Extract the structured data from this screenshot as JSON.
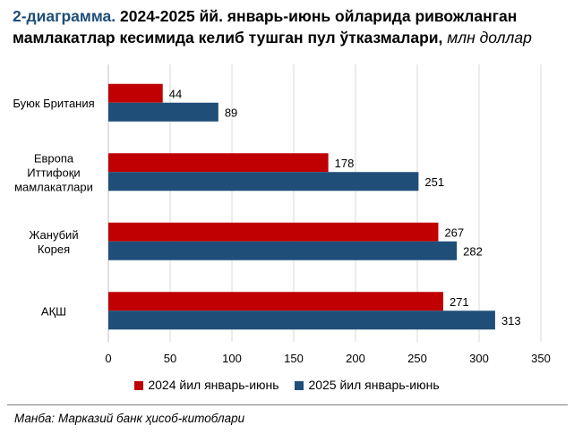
{
  "title": {
    "lead": "2-диаграмма.",
    "main": " 2024-2025 йй. январь-июнь ойларида ривожланган мамлакатлар кесимида келиб тушган пул ўтказмалари, ",
    "unit": "млн доллар"
  },
  "source": "Манба: Марказий банк ҳисоб-китоблари",
  "chart_data": {
    "type": "bar",
    "orientation": "horizontal",
    "categories": [
      [
        "Буюк Британия"
      ],
      [
        "Европа",
        "Иттифоқи",
        "мамлакатлари"
      ],
      [
        "Жанубий",
        "Корея"
      ],
      [
        "АҚШ"
      ]
    ],
    "series": [
      {
        "name": "2024 йил январь-июнь",
        "color": "#c00000",
        "values": [
          44,
          178,
          267,
          271
        ]
      },
      {
        "name": "2025 йил январь-июнь",
        "color": "#1f4e79",
        "values": [
          89,
          251,
          282,
          313
        ]
      }
    ],
    "xlim": [
      0,
      350
    ],
    "xticks": [
      0,
      50,
      100,
      150,
      200,
      250,
      300,
      350
    ],
    "grid": true,
    "legend_position": "bottom"
  }
}
